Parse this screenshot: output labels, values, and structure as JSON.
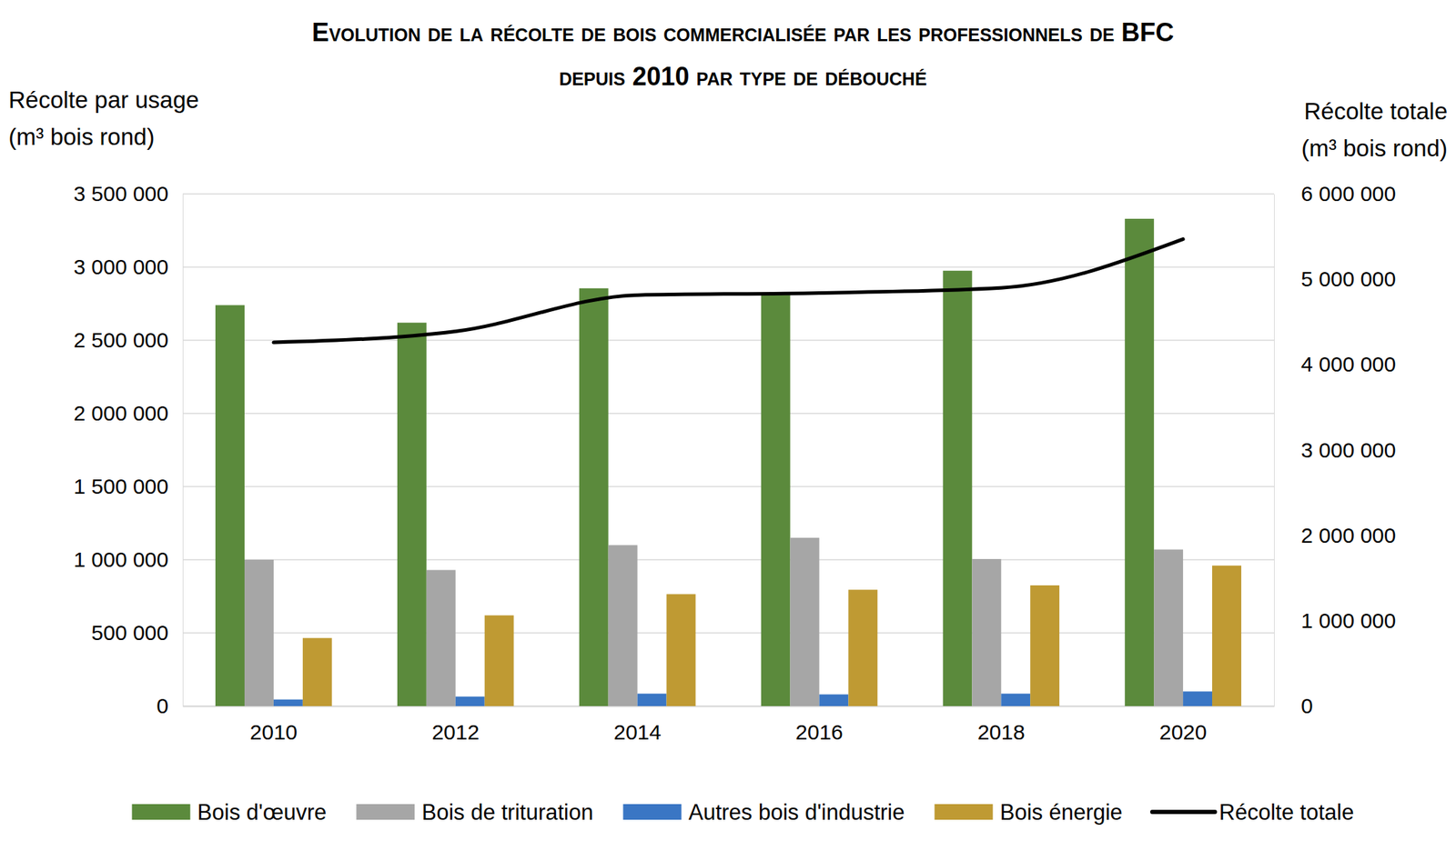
{
  "chart_data": {
    "type": "bar",
    "title": [
      "Evolution de la récolte de bois commercialisée par les professionnels de BFC",
      "depuis 2010 par type de débouché"
    ],
    "y_label": [
      "Récolte par usage",
      "(m³ bois rond)"
    ],
    "y2_label": [
      "Récolte totale",
      "(m³ bois rond)"
    ],
    "categories": [
      "2010",
      "2012",
      "2014",
      "2016",
      "2018",
      "2020"
    ],
    "series": [
      {
        "name": "Bois d'œuvre",
        "type": "bar",
        "color": "#5b8a3c",
        "values": [
          2740000,
          2620000,
          2855000,
          2810000,
          2975000,
          3330000
        ]
      },
      {
        "name": "Bois de trituration",
        "type": "bar",
        "color": "#a6a6a6",
        "values": [
          1000000,
          930000,
          1100000,
          1150000,
          1005000,
          1070000
        ]
      },
      {
        "name": "Autres bois d'industrie",
        "type": "bar",
        "color": "#3a76c4",
        "values": [
          45000,
          65000,
          85000,
          80000,
          85000,
          100000
        ]
      },
      {
        "name": "Bois énergie",
        "type": "bar",
        "color": "#bf9a33",
        "values": [
          465000,
          620000,
          765000,
          795000,
          825000,
          960000
        ]
      },
      {
        "name": "Récolte totale",
        "type": "line",
        "axis": "y2",
        "color": "#000000",
        "line_style": "solid",
        "values": [
          4260000,
          4390000,
          4815000,
          4840000,
          4900000,
          5470000
        ]
      }
    ],
    "ylim": [
      0,
      3500000
    ],
    "yticks": [
      0,
      {
        "value": 500000,
        "label": "500 000"
      },
      {
        "value": 1000000,
        "label": "1 000 000"
      },
      {
        "value": 1500000,
        "label": "1 500 000"
      },
      {
        "value": 2000000,
        "label": "2 000 000"
      },
      {
        "value": 2500000,
        "label": "2 500 000"
      },
      {
        "value": 3000000,
        "label": "3 000 000"
      },
      {
        "value": 3500000,
        "label": "3 500 000"
      }
    ],
    "y2lim": [
      0,
      6000000
    ],
    "y2ticks": [
      0,
      {
        "value": 1000000,
        "label": "1 000 000"
      },
      {
        "value": 2000000,
        "label": "2 000 000"
      },
      {
        "value": 3000000,
        "label": "3 000 000"
      },
      {
        "value": 4000000,
        "label": "4 000 000"
      },
      {
        "value": 5000000,
        "label": "5 000 000"
      },
      {
        "value": 6000000,
        "label": "6 000 000"
      }
    ],
    "grid": true,
    "legend": "bottom"
  }
}
